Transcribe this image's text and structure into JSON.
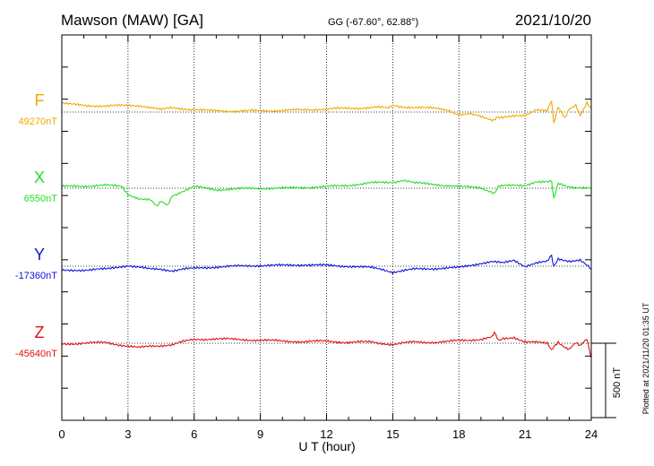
{
  "header": {
    "station": "Mawson (MAW)  [GA]",
    "coords": "GG (-67.60°,  62.88°)",
    "date": "2021/10/20"
  },
  "side_note": "Plotted at 2021/11/20 01:35 UT",
  "colors": {
    "F": "#f0a800",
    "X": "#22e022",
    "Y": "#1010d8",
    "Z": "#e01010",
    "axis": "#000000",
    "grid": "#000000"
  },
  "chart_data": {
    "type": "line",
    "title": "Mawson (MAW)  [GA]",
    "xlabel": "U T (hour)",
    "ylabel": "",
    "xlim": [
      0,
      24
    ],
    "x_ticks": [
      0,
      3,
      6,
      9,
      12,
      15,
      18,
      21,
      24
    ],
    "x_tick_labels": [
      "0",
      "3",
      "6",
      "9",
      "12",
      "15",
      "18",
      "21",
      "24"
    ],
    "grid": "dotted vertical lines every 3 h, dotted baseline per component",
    "scale_bar": {
      "label": "500 nT",
      "value_nT": 500
    },
    "series": [
      {
        "name": "F",
        "baseline_label": "49270nT",
        "baseline_nT": 49270,
        "x": [
          0,
          0.5,
          1,
          2,
          3,
          3.5,
          4.5,
          5,
          6,
          6.5,
          7,
          8,
          9,
          10,
          11,
          12,
          13,
          14,
          14.8,
          15,
          15.5,
          16,
          17,
          17.5,
          18,
          18.5,
          19,
          19.5,
          19.6,
          19.7,
          20,
          20.5,
          21,
          21.5,
          22,
          22.2,
          22.3,
          22.5,
          22.8,
          23,
          23.3,
          23.5,
          23.8,
          24
        ],
        "offset": [
          60,
          50,
          45,
          40,
          45,
          45,
          15,
          30,
          15,
          10,
          10,
          5,
          10,
          10,
          15,
          20,
          25,
          30,
          30,
          45,
          35,
          30,
          25,
          15,
          -20,
          -15,
          -30,
          -50,
          -60,
          -30,
          -35,
          -30,
          -25,
          20,
          10,
          80,
          -80,
          30,
          -40,
          20,
          50,
          -20,
          60,
          20
        ]
      },
      {
        "name": "X",
        "baseline_label": "6550nT",
        "baseline_nT": 6550,
        "x": [
          0,
          1,
          2,
          2.7,
          3,
          3.5,
          4,
          4.3,
          4.5,
          4.8,
          5,
          5.5,
          6,
          6.5,
          7,
          8,
          9,
          10,
          11,
          12,
          13,
          14,
          15,
          15.5,
          16,
          17,
          18,
          19,
          19.6,
          19.8,
          20,
          21,
          21.5,
          22,
          22.2,
          22.3,
          22.5,
          23,
          24
        ],
        "offset": [
          10,
          15,
          20,
          10,
          -40,
          -70,
          -80,
          -120,
          -90,
          -110,
          -50,
          -20,
          10,
          0,
          -10,
          -5,
          0,
          0,
          5,
          10,
          20,
          35,
          40,
          55,
          35,
          25,
          10,
          5,
          -40,
          10,
          15,
          20,
          45,
          40,
          50,
          -70,
          30,
          10,
          0
        ]
      },
      {
        "name": "Y",
        "baseline_label": "-17360nT",
        "baseline_nT": -17360,
        "x": [
          0,
          1,
          2,
          3,
          4,
          4.5,
          5,
          5.5,
          6,
          7,
          8,
          9,
          10,
          11,
          12,
          13,
          14,
          14.5,
          15,
          15.5,
          16,
          17,
          18,
          19,
          19.5,
          20,
          20.5,
          21,
          21.5,
          22,
          22.2,
          22.3,
          22.5,
          23,
          23.5,
          24
        ],
        "offset": [
          -30,
          -25,
          -20,
          5,
          -20,
          -20,
          -30,
          -20,
          -15,
          -5,
          0,
          5,
          5,
          10,
          5,
          0,
          -10,
          -20,
          -40,
          -30,
          -20,
          -15,
          -10,
          20,
          30,
          20,
          40,
          0,
          20,
          30,
          70,
          0,
          50,
          35,
          40,
          -20
        ]
      },
      {
        "name": "Z",
        "baseline_label": "-45640nT",
        "baseline_nT": -45640,
        "x": [
          0,
          1,
          2,
          3,
          3.5,
          4,
          5,
          5.5,
          6,
          7,
          8,
          9,
          10,
          11,
          12,
          13,
          14,
          15,
          16,
          17,
          17.5,
          18,
          19,
          19.5,
          19.6,
          19.8,
          20,
          20.5,
          21,
          21.5,
          22,
          22.2,
          22.3,
          22.5,
          22.8,
          23,
          23.3,
          23.5,
          23.8,
          24
        ],
        "offset": [
          -5,
          0,
          5,
          -20,
          -30,
          -20,
          -10,
          10,
          25,
          30,
          25,
          20,
          15,
          10,
          15,
          5,
          10,
          -10,
          10,
          5,
          10,
          20,
          25,
          40,
          80,
          20,
          30,
          40,
          10,
          5,
          0,
          -50,
          -20,
          10,
          -30,
          -40,
          0,
          -20,
          30,
          -100
        ]
      }
    ]
  }
}
